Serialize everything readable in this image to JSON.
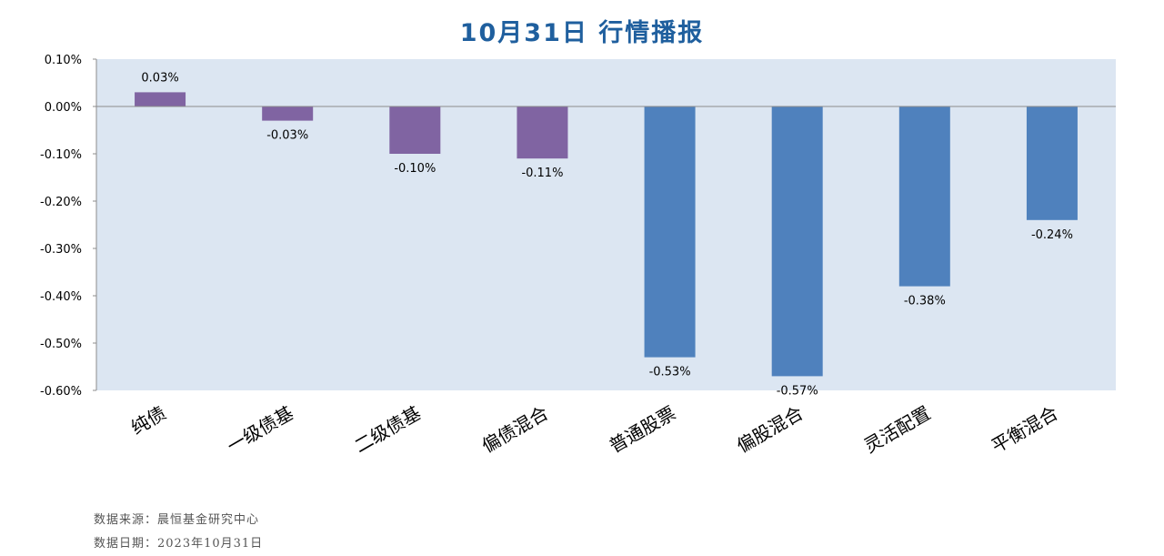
{
  "chart_data": {
    "type": "bar",
    "title": "10月31日  行情播报",
    "categories": [
      "纯债",
      "一级债基",
      "二级债基",
      "偏债混合",
      "普通股票",
      "偏股混合",
      "灵活配置",
      "平衡混合"
    ],
    "values": [
      0.03,
      -0.03,
      -0.1,
      -0.11,
      -0.53,
      -0.57,
      -0.38,
      -0.24
    ],
    "value_labels": [
      "0.03%",
      "-0.03%",
      "-0.10%",
      "-0.11%",
      "-0.53%",
      "-0.57%",
      "-0.38%",
      "-0.24%"
    ],
    "ylim": [
      -0.6,
      0.1
    ],
    "yticks": [
      0.1,
      0.0,
      -0.1,
      -0.2,
      -0.3,
      -0.4,
      -0.5,
      -0.6
    ],
    "ytick_labels": [
      "0.10%",
      "0.00%",
      "-0.10%",
      "-0.20%",
      "-0.30%",
      "-0.40%",
      "-0.50%",
      "-0.60%"
    ],
    "bar_colors": [
      "#8064a2",
      "#8064a2",
      "#8064a2",
      "#8064a2",
      "#4f81bd",
      "#4f81bd",
      "#4f81bd",
      "#4f81bd"
    ],
    "plot_background": "#dce6f2",
    "grid": false,
    "xlabel": "",
    "ylabel": ""
  },
  "footer": {
    "source": "数据来源：晨恒基金研究中心",
    "date": "数据日期：2023年10月31日"
  }
}
